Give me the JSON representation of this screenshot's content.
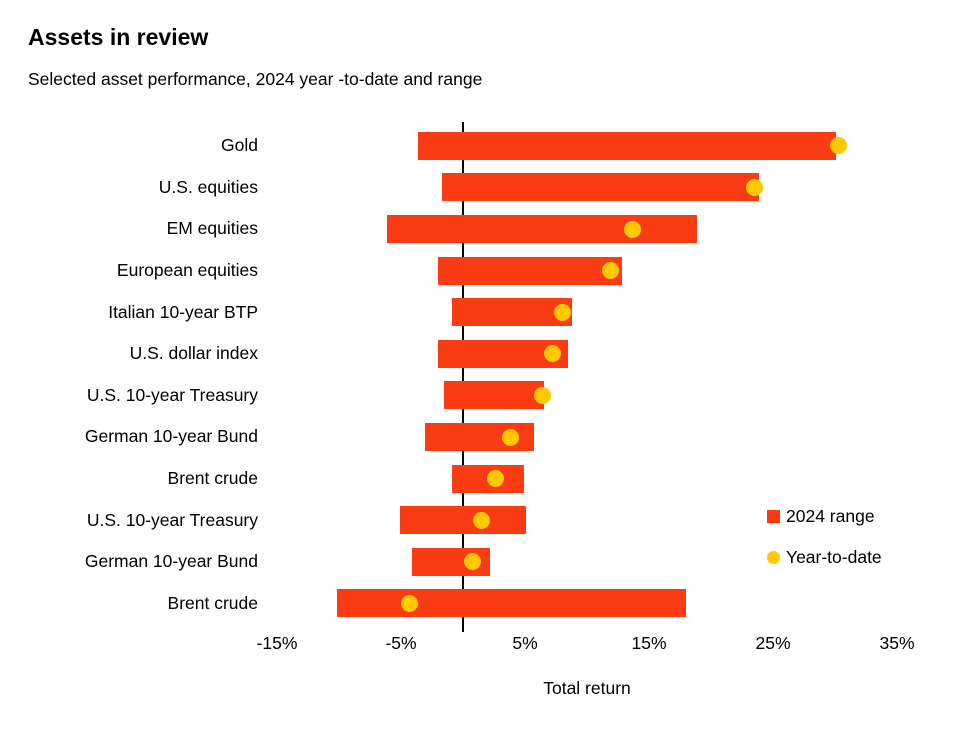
{
  "header": {
    "title": "Assets in review",
    "subtitle": "Selected asset performance, 2024 year -to-date and range"
  },
  "chart_data": {
    "type": "bar",
    "subtype": "horizontal-range-with-dot",
    "title": "Assets in review",
    "subtitle": "Selected asset performance, 2024 year -to-date and range",
    "categories": [
      "Gold",
      "U.S. equities",
      "EM equities",
      "European equities",
      "Italian 10-year BTP",
      "U.S. dollar index",
      "U.S. 10-year Treasury",
      "German 10-year Bund",
      "Brent crude",
      "U.S. 10-year Treasury",
      "German 10-year Bund",
      "Brent crude"
    ],
    "series": [
      {
        "name": "2024 range",
        "type": "range",
        "low": [
          -3.6,
          -1.7,
          -6.1,
          -2.0,
          -0.9,
          -2.0,
          -1.5,
          -3.1,
          -0.9,
          -5.1,
          -4.1,
          -10.2
        ],
        "high": [
          30.1,
          23.9,
          18.9,
          12.8,
          8.8,
          8.5,
          6.5,
          5.7,
          4.9,
          5.1,
          2.2,
          18.0
        ]
      },
      {
        "name": "Year-to-date",
        "type": "dot",
        "values": [
          30.3,
          23.5,
          13.7,
          11.9,
          8.0,
          7.2,
          6.4,
          3.8,
          2.6,
          1.5,
          0.8,
          -4.3
        ]
      }
    ],
    "xlabel": "Total return",
    "ylabel": "",
    "xlim": [
      -15,
      35
    ],
    "x_tick_values": [
      -15,
      -5,
      5,
      15,
      25,
      35
    ],
    "x_tick_labels": [
      "-15%",
      "-5%",
      "5%",
      "15%",
      "25%",
      "35%"
    ],
    "zero_line": 0,
    "grid": false,
    "legend_position": "right-middle",
    "legend": [
      {
        "label": "2024 range",
        "marker": "square",
        "color": "#FA3C14"
      },
      {
        "label": "Year-to-date",
        "marker": "circle",
        "color": "#FFC800"
      }
    ],
    "colors": {
      "bar": "#FA3C14",
      "dot": "#FFC800",
      "zero_line": "#000000",
      "text": "#000000"
    }
  }
}
